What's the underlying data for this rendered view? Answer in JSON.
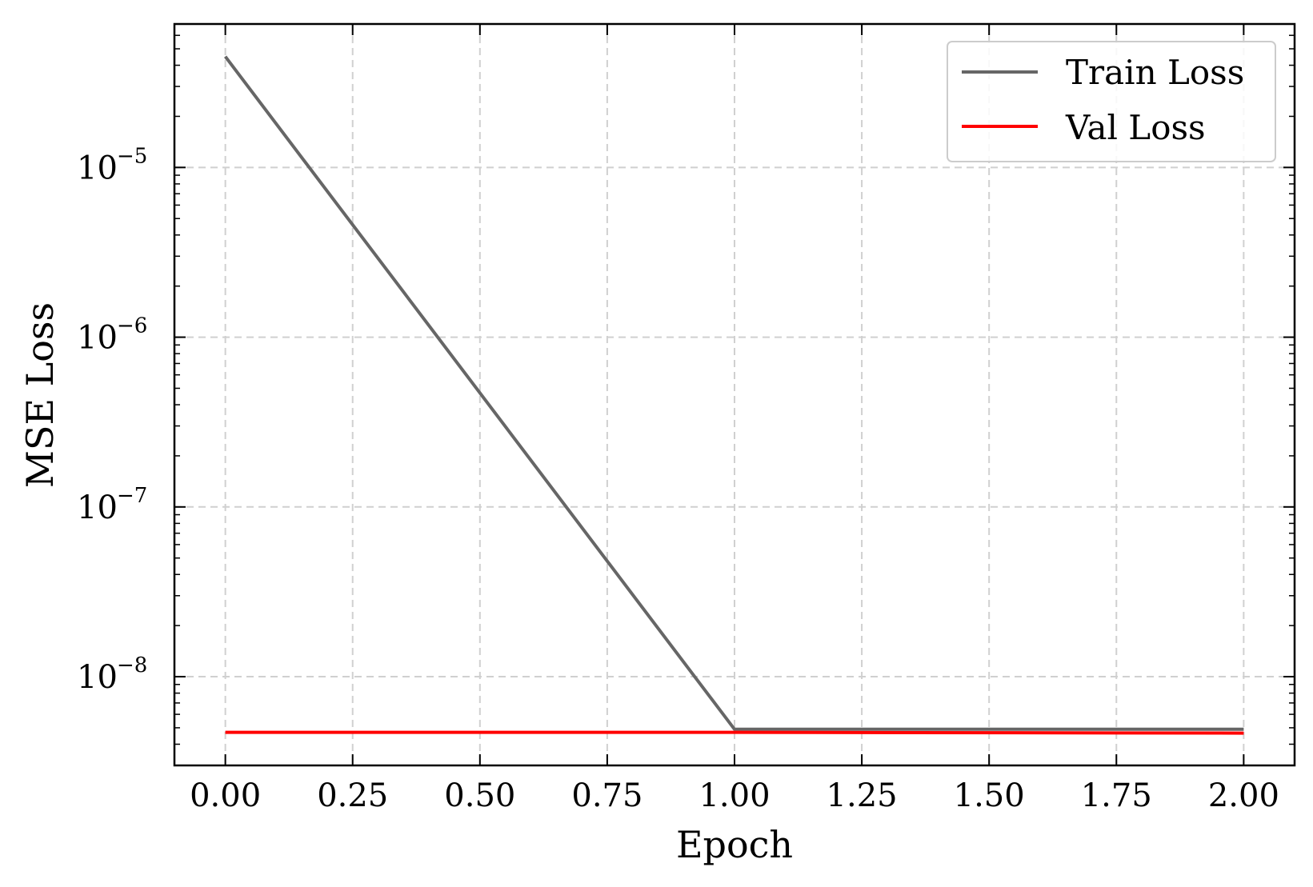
{
  "chart_data": {
    "type": "line",
    "title": "",
    "xlabel": "Epoch",
    "ylabel": "MSE Loss",
    "xscale": "linear",
    "yscale": "log",
    "xlim": [
      -0.1,
      2.1
    ],
    "ylim": [
      3e-09,
      7e-05
    ],
    "x_ticks": [
      0.0,
      0.25,
      0.5,
      0.75,
      1.0,
      1.25,
      1.5,
      1.75,
      2.0
    ],
    "x_tick_labels": [
      "0.00",
      "0.25",
      "0.50",
      "0.75",
      "1.00",
      "1.25",
      "1.50",
      "1.75",
      "2.00"
    ],
    "y_ticks": [
      1e-08,
      1e-07,
      1e-06,
      1e-05
    ],
    "y_tick_labels": [
      {
        "base": "10",
        "exp": "−8"
      },
      {
        "base": "10",
        "exp": "−7"
      },
      {
        "base": "10",
        "exp": "−6"
      },
      {
        "base": "10",
        "exp": "−5"
      }
    ],
    "grid": true,
    "legend_position": "top-right",
    "series": [
      {
        "name": "Train Loss",
        "color": "#666666",
        "x": [
          0,
          1,
          2
        ],
        "y": [
          4.5e-05,
          4.9e-09,
          4.9e-09
        ]
      },
      {
        "name": "Val Loss",
        "color": "#ff0000",
        "x": [
          0,
          1,
          2
        ],
        "y": [
          4.7e-09,
          4.7e-09,
          4.65e-09
        ]
      }
    ]
  }
}
